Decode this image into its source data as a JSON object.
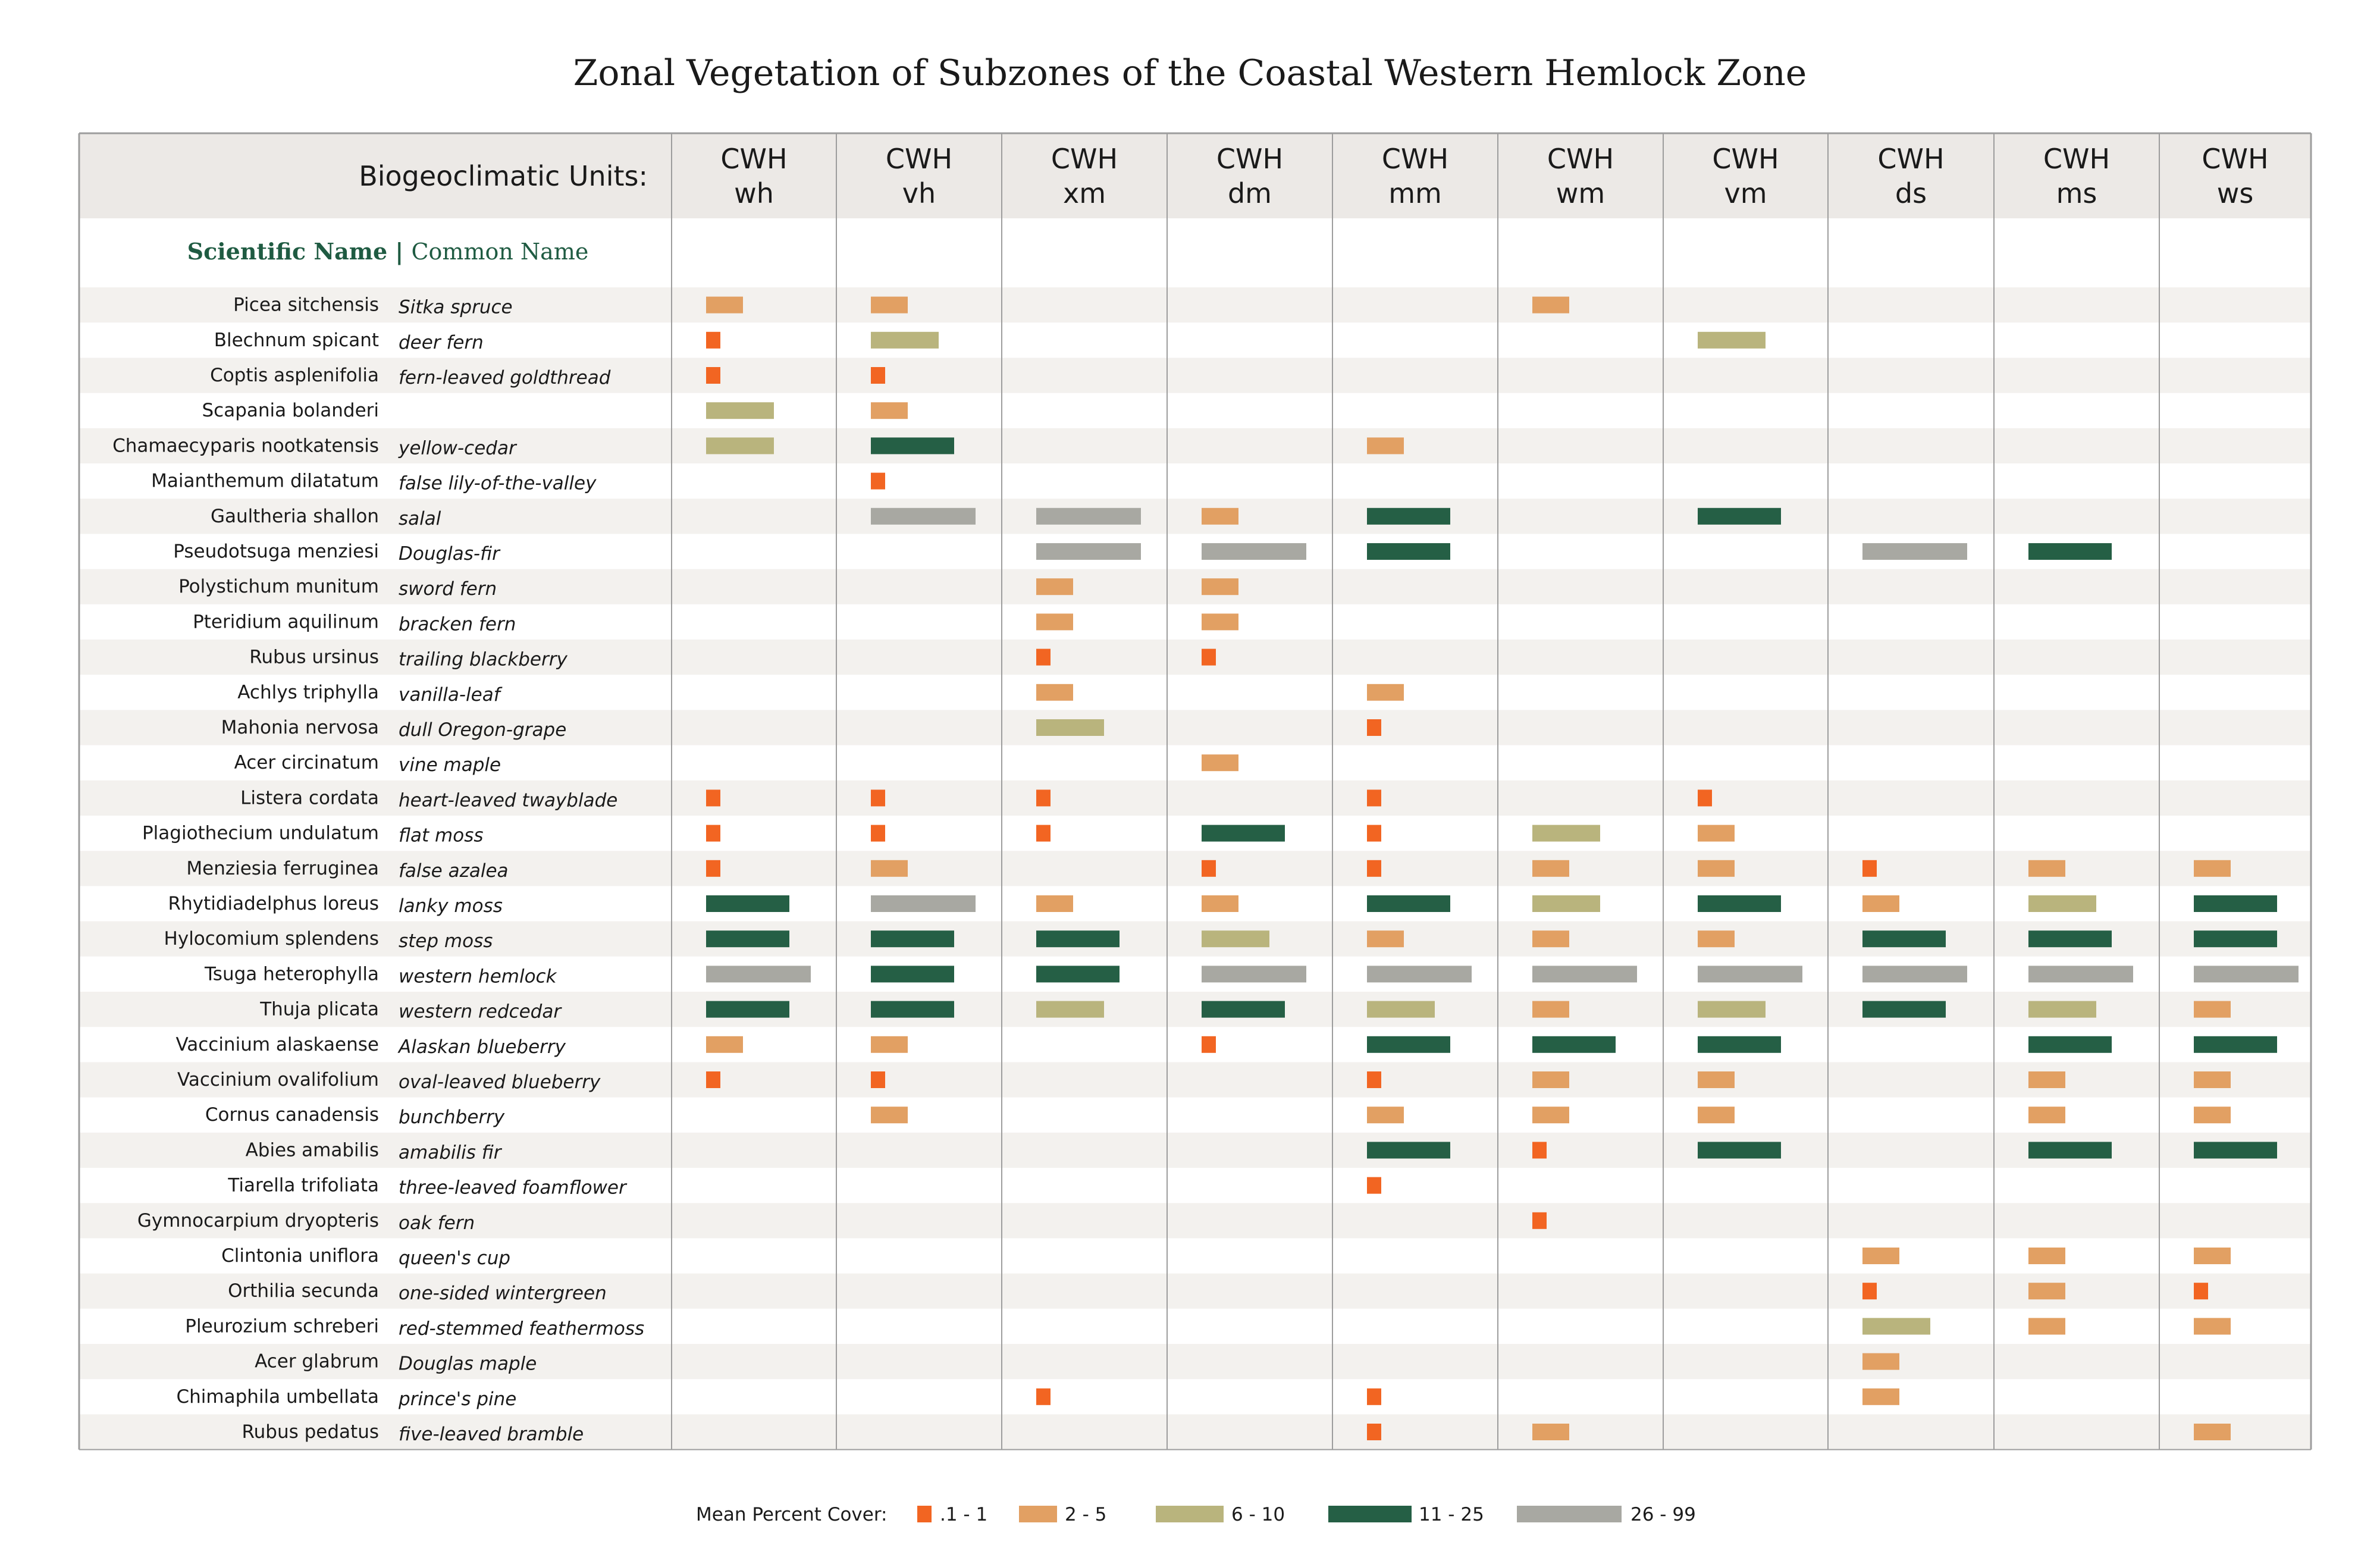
{
  "title": "Zonal Vegetation of Subzones of the Coastal Western Hemlock Zone",
  "header_label": "Biogeoclimatic Units:",
  "name_header": {
    "scientific": "Scientific Name",
    "separator": "|",
    "common": "Common Name"
  },
  "colors": {
    "c1": "#f26522",
    "c2": "#e2a063",
    "c3": "#b9b47d",
    "c4": "#255f45",
    "c5": "#a8a8a2",
    "header_bg": "#ece9e6",
    "stripe": "#f3f1ee",
    "name_green": "#1f5b42",
    "grid": "#9d9d9d"
  },
  "legend": {
    "label": "Mean Percent Cover:",
    "items": [
      {
        "class": "c1",
        "label": ".1 - 1"
      },
      {
        "class": "c2",
        "label": "2 - 5"
      },
      {
        "class": "c3",
        "label": "6 - 10"
      },
      {
        "class": "c4",
        "label": "11 - 25"
      },
      {
        "class": "c5",
        "label": "26 - 99"
      }
    ]
  },
  "chart_data": {
    "type": "table",
    "columns": [
      {
        "line1": "CWH",
        "line2": "wh"
      },
      {
        "line1": "CWH",
        "line2": "vh"
      },
      {
        "line1": "CWH",
        "line2": "xm"
      },
      {
        "line1": "CWH",
        "line2": "dm"
      },
      {
        "line1": "CWH",
        "line2": "mm"
      },
      {
        "line1": "CWH",
        "line2": "wm"
      },
      {
        "line1": "CWH",
        "line2": "vm"
      },
      {
        "line1": "CWH",
        "line2": "ds"
      },
      {
        "line1": "CWH",
        "line2": "ms"
      },
      {
        "line1": "CWH",
        "line2": "ws"
      }
    ],
    "cover_class_legend": [
      ".1 - 1",
      "2 - 5",
      "6 - 10",
      "11 - 25",
      "26 - 99"
    ],
    "rows": [
      {
        "scientific": "Picea sitchensis",
        "common": "Sitka spruce",
        "values": [
          2,
          2,
          0,
          0,
          0,
          2,
          0,
          0,
          0,
          0
        ]
      },
      {
        "scientific": "Blechnum spicant",
        "common": "deer fern",
        "values": [
          1,
          3,
          0,
          0,
          0,
          0,
          3,
          0,
          0,
          0
        ]
      },
      {
        "scientific": "Coptis asplenifolia",
        "common": "fern-leaved goldthread",
        "values": [
          1,
          1,
          0,
          0,
          0,
          0,
          0,
          0,
          0,
          0
        ]
      },
      {
        "scientific": "Scapania bolanderi",
        "common": "",
        "values": [
          3,
          2,
          0,
          0,
          0,
          0,
          0,
          0,
          0,
          0
        ]
      },
      {
        "scientific": "Chamaecyparis nootkatensis",
        "common": "yellow-cedar",
        "values": [
          3,
          4,
          0,
          0,
          2,
          0,
          0,
          0,
          0,
          0
        ]
      },
      {
        "scientific": "Maianthemum dilatatum",
        "common": "false lily-of-the-valley",
        "values": [
          0,
          1,
          0,
          0,
          0,
          0,
          0,
          0,
          0,
          0
        ]
      },
      {
        "scientific": "Gaultheria shallon",
        "common": "salal",
        "values": [
          0,
          5,
          5,
          2,
          4,
          0,
          4,
          0,
          0,
          0
        ]
      },
      {
        "scientific": "Pseudotsuga menziesi",
        "common": "Douglas-fir",
        "values": [
          0,
          0,
          5,
          5,
          4,
          0,
          0,
          5,
          4,
          0
        ]
      },
      {
        "scientific": "Polystichum munitum",
        "common": "sword fern",
        "values": [
          0,
          0,
          2,
          2,
          0,
          0,
          0,
          0,
          0,
          0
        ]
      },
      {
        "scientific": "Pteridium aquilinum",
        "common": "bracken fern",
        "values": [
          0,
          0,
          2,
          2,
          0,
          0,
          0,
          0,
          0,
          0
        ]
      },
      {
        "scientific": "Rubus ursinus",
        "common": "trailing blackberry",
        "values": [
          0,
          0,
          1,
          1,
          0,
          0,
          0,
          0,
          0,
          0
        ]
      },
      {
        "scientific": "Achlys triphylla",
        "common": "vanilla-leaf",
        "values": [
          0,
          0,
          2,
          0,
          2,
          0,
          0,
          0,
          0,
          0
        ]
      },
      {
        "scientific": "Mahonia nervosa",
        "common": "dull Oregon-grape",
        "values": [
          0,
          0,
          3,
          0,
          1,
          0,
          0,
          0,
          0,
          0
        ]
      },
      {
        "scientific": "Acer circinatum",
        "common": "vine maple",
        "values": [
          0,
          0,
          0,
          2,
          0,
          0,
          0,
          0,
          0,
          0
        ]
      },
      {
        "scientific": "Listera cordata",
        "common": "heart-leaved twayblade",
        "values": [
          1,
          1,
          1,
          0,
          1,
          0,
          1,
          0,
          0,
          0
        ]
      },
      {
        "scientific": "Plagiothecium undulatum",
        "common": "flat moss",
        "values": [
          1,
          1,
          1,
          4,
          1,
          3,
          2,
          0,
          0,
          0
        ]
      },
      {
        "scientific": "Menziesia ferruginea",
        "common": "false azalea",
        "values": [
          1,
          2,
          0,
          1,
          1,
          2,
          2,
          1,
          2,
          2
        ]
      },
      {
        "scientific": "Rhytidiadelphus loreus",
        "common": "lanky moss",
        "values": [
          4,
          5,
          2,
          2,
          4,
          3,
          4,
          2,
          3,
          4
        ]
      },
      {
        "scientific": "Hylocomium splendens",
        "common": "step moss",
        "values": [
          4,
          4,
          4,
          3,
          2,
          2,
          2,
          4,
          4,
          4
        ]
      },
      {
        "scientific": "Tsuga heterophylla",
        "common": "western hemlock",
        "values": [
          5,
          4,
          4,
          5,
          5,
          5,
          5,
          5,
          5,
          5
        ]
      },
      {
        "scientific": "Thuja plicata",
        "common": "western redcedar",
        "values": [
          4,
          4,
          3,
          4,
          3,
          2,
          3,
          4,
          3,
          2
        ]
      },
      {
        "scientific": "Vaccinium alaskaense",
        "common": "Alaskan blueberry",
        "values": [
          2,
          2,
          0,
          1,
          4,
          4,
          4,
          0,
          4,
          4
        ]
      },
      {
        "scientific": "Vaccinium ovalifolium",
        "common": "oval-leaved blueberry",
        "values": [
          1,
          1,
          0,
          0,
          1,
          2,
          2,
          0,
          2,
          2
        ]
      },
      {
        "scientific": "Cornus canadensis",
        "common": "bunchberry",
        "values": [
          0,
          2,
          0,
          0,
          2,
          2,
          2,
          0,
          2,
          2
        ]
      },
      {
        "scientific": "Abies amabilis",
        "common": "amabilis fir",
        "values": [
          0,
          0,
          0,
          0,
          4,
          1,
          4,
          0,
          4,
          4
        ]
      },
      {
        "scientific": "Tiarella trifoliata",
        "common": "three-leaved foamflower",
        "values": [
          0,
          0,
          0,
          0,
          1,
          0,
          0,
          0,
          0,
          0
        ]
      },
      {
        "scientific": "Gymnocarpium dryopteris",
        "common": "oak fern",
        "values": [
          0,
          0,
          0,
          0,
          0,
          1,
          0,
          0,
          0,
          0
        ]
      },
      {
        "scientific": "Clintonia uniflora",
        "common": "queen's cup",
        "values": [
          0,
          0,
          0,
          0,
          0,
          0,
          0,
          2,
          2,
          2
        ]
      },
      {
        "scientific": "Orthilia secunda",
        "common": "one-sided wintergreen",
        "values": [
          0,
          0,
          0,
          0,
          0,
          0,
          0,
          1,
          2,
          1
        ]
      },
      {
        "scientific": "Pleurozium schreberi",
        "common": "red-stemmed feathermoss",
        "values": [
          0,
          0,
          0,
          0,
          0,
          0,
          0,
          3,
          2,
          2
        ]
      },
      {
        "scientific": "Acer glabrum",
        "common": "Douglas maple",
        "values": [
          0,
          0,
          0,
          0,
          0,
          0,
          0,
          2,
          0,
          0
        ]
      },
      {
        "scientific": "Chimaphila umbellata",
        "common": "prince's pine",
        "values": [
          0,
          0,
          1,
          0,
          1,
          0,
          0,
          2,
          0,
          0
        ]
      },
      {
        "scientific": "Rubus pedatus",
        "common": "five-leaved bramble",
        "values": [
          0,
          0,
          0,
          0,
          1,
          2,
          0,
          0,
          0,
          2
        ]
      }
    ]
  }
}
